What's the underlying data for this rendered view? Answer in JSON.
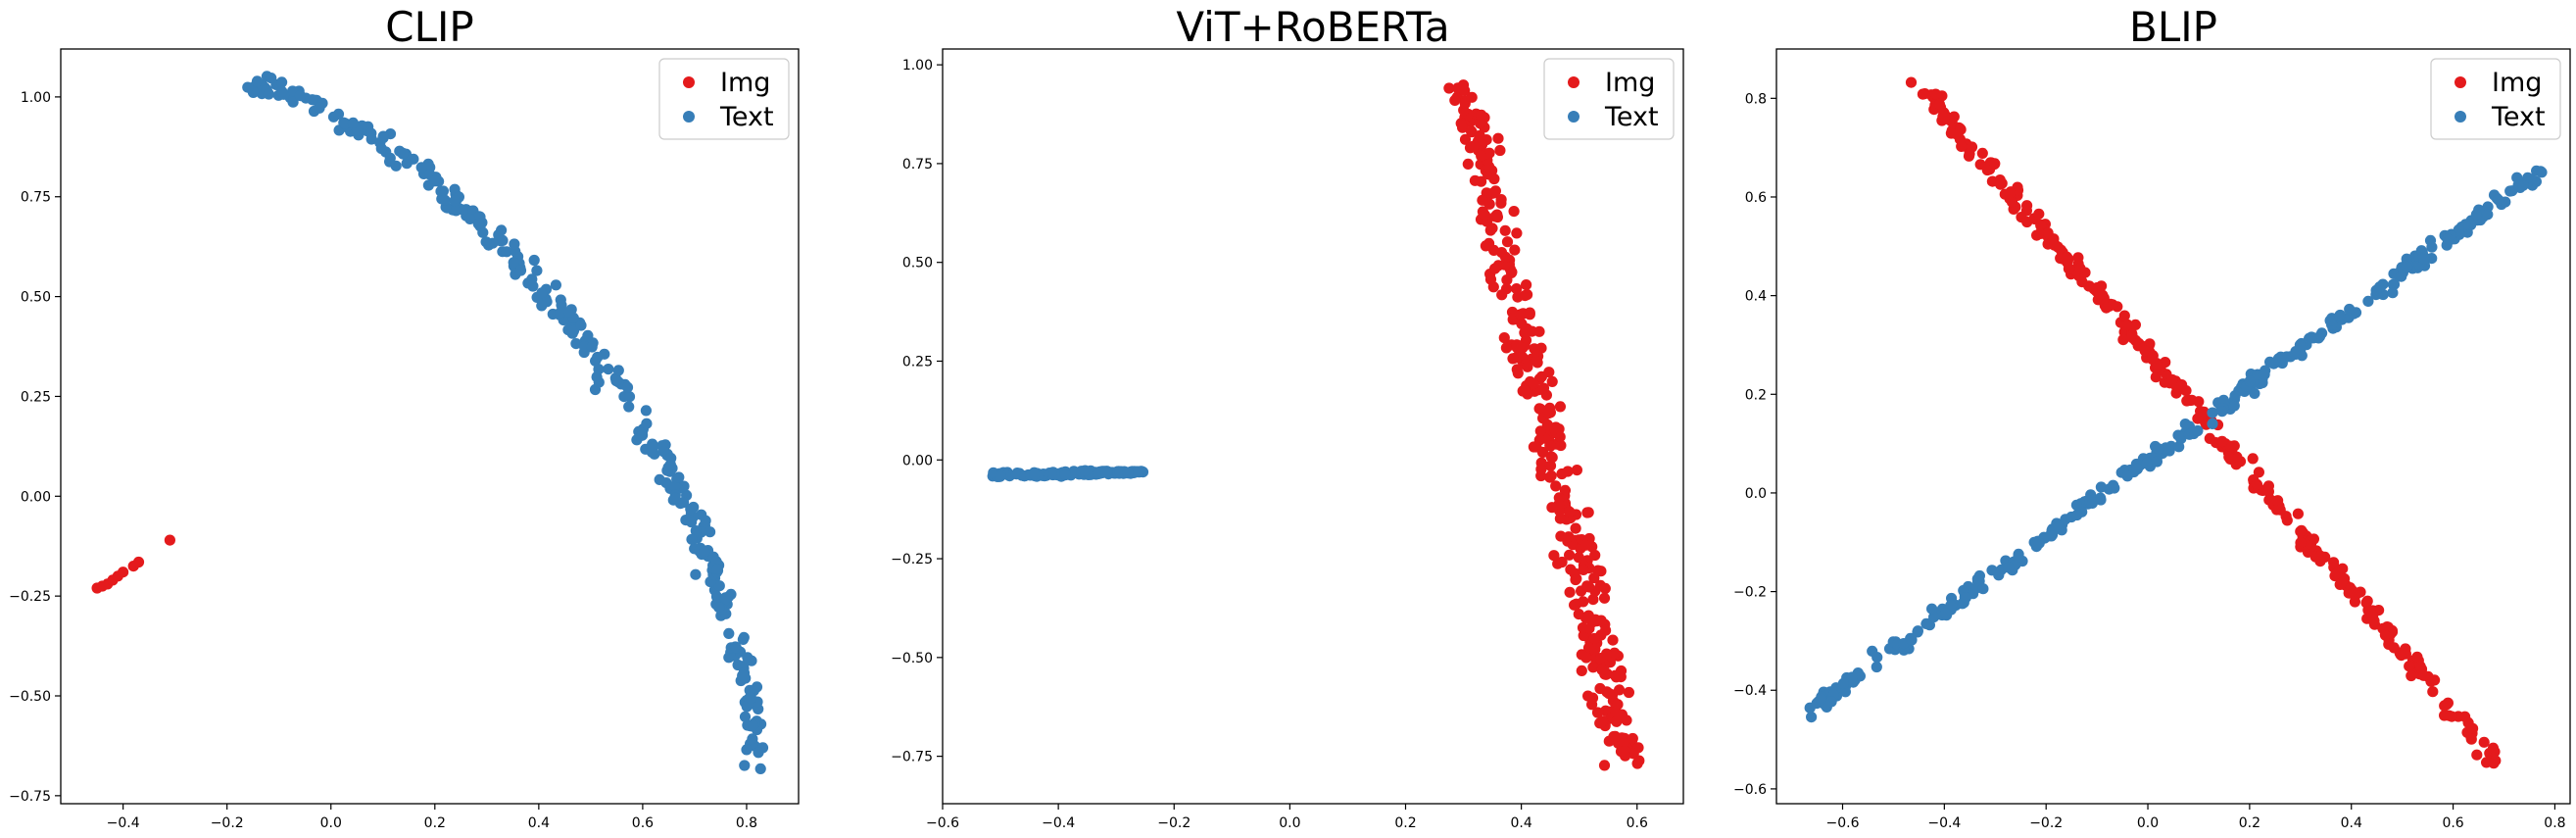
{
  "chart_data": [
    {
      "type": "scatter",
      "title": "CLIP",
      "xlabel": "",
      "ylabel": "",
      "xlim": [
        -0.52,
        0.9
      ],
      "ylim": [
        -0.77,
        1.12
      ],
      "xticks": [
        -0.4,
        -0.2,
        0.0,
        0.2,
        0.4,
        0.6,
        0.8
      ],
      "yticks": [
        -0.75,
        -0.5,
        -0.25,
        0.0,
        0.25,
        0.5,
        0.75,
        1.0
      ],
      "xtick_labels": [
        "−0.4",
        "−0.2",
        "0.0",
        "0.2",
        "0.4",
        "0.6",
        "0.8"
      ],
      "ytick_labels": [
        "−0.75",
        "−0.50",
        "−0.25",
        "0.00",
        "0.25",
        "0.50",
        "0.75",
        "1.00"
      ],
      "legend": {
        "position": "top-right",
        "entries": [
          "Img",
          "Text"
        ]
      },
      "series": [
        {
          "name": "Img",
          "color": "#e41a1c",
          "points": [
            [
              -0.45,
              -0.23
            ],
            [
              -0.44,
              -0.225
            ],
            [
              -0.43,
              -0.22
            ],
            [
              -0.42,
              -0.21
            ],
            [
              -0.41,
              -0.2
            ],
            [
              -0.4,
              -0.19
            ],
            [
              -0.38,
              -0.175
            ],
            [
              -0.37,
              -0.165
            ],
            [
              -0.31,
              -0.11
            ]
          ]
        },
        {
          "name": "Text",
          "color": "#377eb8",
          "curve": "arc",
          "x_start": -0.14,
          "y_start": 1.03,
          "x_end": 0.82,
          "y_end": -0.67,
          "spread": 0.018,
          "count": 320
        }
      ]
    },
    {
      "type": "scatter",
      "title": "ViT+RoBERTa",
      "xlabel": "",
      "ylabel": "",
      "xlim": [
        -0.6,
        0.68
      ],
      "ylim": [
        -0.87,
        1.04
      ],
      "xticks": [
        -0.6,
        -0.4,
        -0.2,
        0.0,
        0.2,
        0.4,
        0.6
      ],
      "yticks": [
        -0.75,
        -0.5,
        -0.25,
        0.0,
        0.25,
        0.5,
        0.75,
        1.0
      ],
      "xtick_labels": [
        "−0.6",
        "−0.4",
        "−0.2",
        "0.0",
        "0.2",
        "0.4",
        "0.6"
      ],
      "ytick_labels": [
        "−0.75",
        "−0.50",
        "−0.25",
        "0.00",
        "0.25",
        "0.50",
        "0.75",
        "1.00"
      ],
      "legend": {
        "position": "top-right",
        "entries": [
          "Img",
          "Text"
        ]
      },
      "series": [
        {
          "name": "Img",
          "color": "#e41a1c",
          "curve": "band",
          "x_start": 0.3,
          "y_start": 0.95,
          "x_end": 0.58,
          "y_end": -0.76,
          "spread": 0.05,
          "count": 340
        },
        {
          "name": "Text",
          "color": "#377eb8",
          "curve": "cluster",
          "x_start": -0.54,
          "y_start": -0.04,
          "x_end": -0.25,
          "y_end": -0.03,
          "spread": 0.015,
          "count": 160
        }
      ]
    },
    {
      "type": "scatter",
      "title": "BLIP",
      "xlabel": "",
      "ylabel": "",
      "xlim": [
        -0.73,
        0.83
      ],
      "ylim": [
        -0.63,
        0.9
      ],
      "xticks": [
        -0.6,
        -0.4,
        -0.2,
        0.0,
        0.2,
        0.4,
        0.6,
        0.8
      ],
      "yticks": [
        -0.6,
        -0.4,
        -0.2,
        0.0,
        0.2,
        0.4,
        0.6,
        0.8
      ],
      "xtick_labels": [
        "−0.6",
        "−0.4",
        "−0.2",
        "0.0",
        "0.2",
        "0.4",
        "0.6",
        "0.8"
      ],
      "ytick_labels": [
        "−0.6",
        "−0.4",
        "−0.2",
        "0.0",
        "0.2",
        "0.4",
        "0.6",
        "0.8"
      ],
      "legend": {
        "position": "top-right",
        "entries": [
          "Img",
          "Text"
        ]
      },
      "series": [
        {
          "name": "Img",
          "color": "#e41a1c",
          "curve": "line",
          "x_start": -0.46,
          "y_start": 0.84,
          "x_end": 0.69,
          "y_end": -0.55,
          "spread": 0.025,
          "count": 330
        },
        {
          "name": "Text",
          "color": "#377eb8",
          "curve": "line",
          "x_start": -0.66,
          "y_start": -0.44,
          "x_end": 0.78,
          "y_end": 0.66,
          "spread": 0.022,
          "count": 330
        }
      ]
    }
  ]
}
